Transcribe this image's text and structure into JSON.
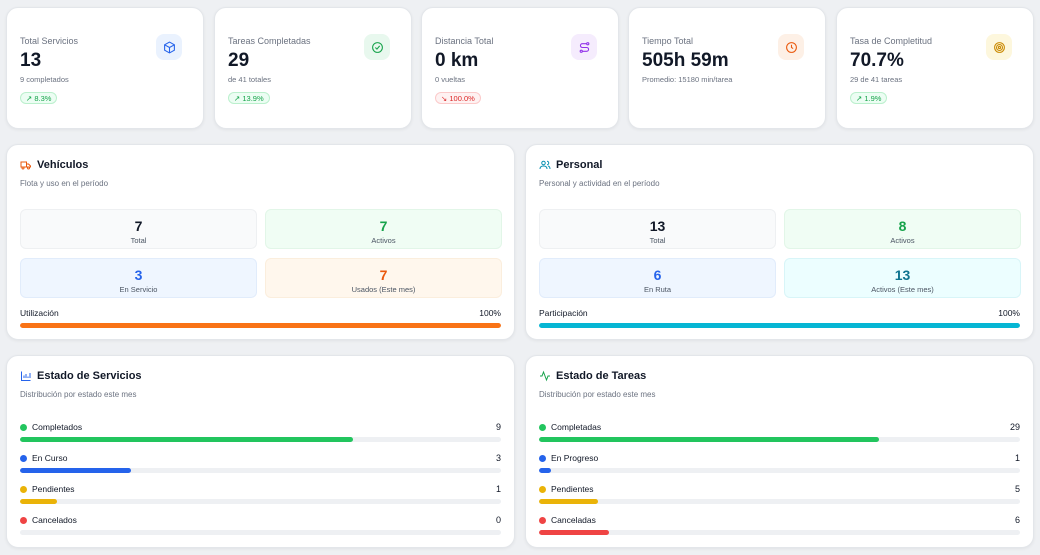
{
  "stats": [
    {
      "label": "Total Servicios",
      "value": "13",
      "sub": "9 completados",
      "badge": "8.3%",
      "trend": "up",
      "icon": "cube-icon",
      "color": "#2563eb",
      "bg": "#eaf2fe"
    },
    {
      "label": "Tareas Completadas",
      "value": "29",
      "sub": "de 41 totales",
      "badge": "13.9%",
      "trend": "up",
      "icon": "check-circle-icon",
      "color": "#16a34a",
      "bg": "#e8f8ee"
    },
    {
      "label": "Distancia Total",
      "value": "0 km",
      "sub": "0 vueltas",
      "badge": "100.0%",
      "trend": "down",
      "icon": "route-icon",
      "color": "#9333ea",
      "bg": "#f5ecfd"
    },
    {
      "label": "Tiempo Total",
      "value": "505h 59m",
      "sub": "Promedio: 15180 min/tarea",
      "badge": "",
      "trend": "",
      "icon": "clock-icon",
      "color": "#ea580c",
      "bg": "#fdf0e6"
    },
    {
      "label": "Tasa de Completitud",
      "value": "70.7%",
      "sub": "29 de 41 tareas",
      "badge": "1.9%",
      "trend": "up",
      "icon": "target-icon",
      "color": "#ca8a04",
      "bg": "#fdf7dd"
    }
  ],
  "vehiculos": {
    "title": "Vehículos",
    "subtitle": "Flota y uso en el período",
    "icon": "truck-icon",
    "accent": "#ea580c",
    "boxes": [
      {
        "value": "7",
        "label": "Total",
        "color": "#111827"
      },
      {
        "value": "7",
        "label": "Activos",
        "color": "#16a34a"
      },
      {
        "value": "3",
        "label": "En Servicio",
        "color": "#2563eb"
      },
      {
        "value": "7",
        "label": "Usados (Este mes)",
        "color": "#ea580c"
      }
    ],
    "bar_label": "Utilización",
    "bar_value": "100%",
    "bar_fraction": 1.0,
    "bar_color": "#f97316"
  },
  "personal": {
    "title": "Personal",
    "subtitle": "Personal y actividad en el período",
    "icon": "users-icon",
    "accent": "#0891b2",
    "boxes": [
      {
        "value": "13",
        "label": "Total",
        "color": "#111827"
      },
      {
        "value": "8",
        "label": "Activos",
        "color": "#16a34a"
      },
      {
        "value": "6",
        "label": "En Ruta",
        "color": "#2563eb"
      },
      {
        "value": "13",
        "label": "Activos (Este mes)",
        "color": "#0e7490"
      }
    ],
    "bar_label": "Participación",
    "bar_value": "100%",
    "bar_fraction": 1.0,
    "bar_color": "#06b6d4"
  },
  "servicios": {
    "title": "Estado de Servicios",
    "subtitle": "Distribución por estado este mes",
    "icon": "bar-chart-icon",
    "accent": "#2563eb",
    "rows": [
      {
        "label": "Completados",
        "count": "9",
        "fraction": 0.692,
        "color": "#22c55e"
      },
      {
        "label": "En Curso",
        "count": "3",
        "fraction": 0.231,
        "color": "#2563eb"
      },
      {
        "label": "Pendientes",
        "count": "1",
        "fraction": 0.077,
        "color": "#eab308"
      },
      {
        "label": "Cancelados",
        "count": "0",
        "fraction": 0.0,
        "color": "#ef4444"
      }
    ]
  },
  "tareas": {
    "title": "Estado de Tareas",
    "subtitle": "Distribución por estado este mes",
    "icon": "activity-icon",
    "accent": "#16a34a",
    "rows": [
      {
        "label": "Completadas",
        "count": "29",
        "fraction": 0.707,
        "color": "#22c55e"
      },
      {
        "label": "En Progreso",
        "count": "1",
        "fraction": 0.024,
        "color": "#2563eb"
      },
      {
        "label": "Pendientes",
        "count": "5",
        "fraction": 0.122,
        "color": "#eab308"
      },
      {
        "label": "Canceladas",
        "count": "6",
        "fraction": 0.146,
        "color": "#ef4444"
      }
    ]
  }
}
